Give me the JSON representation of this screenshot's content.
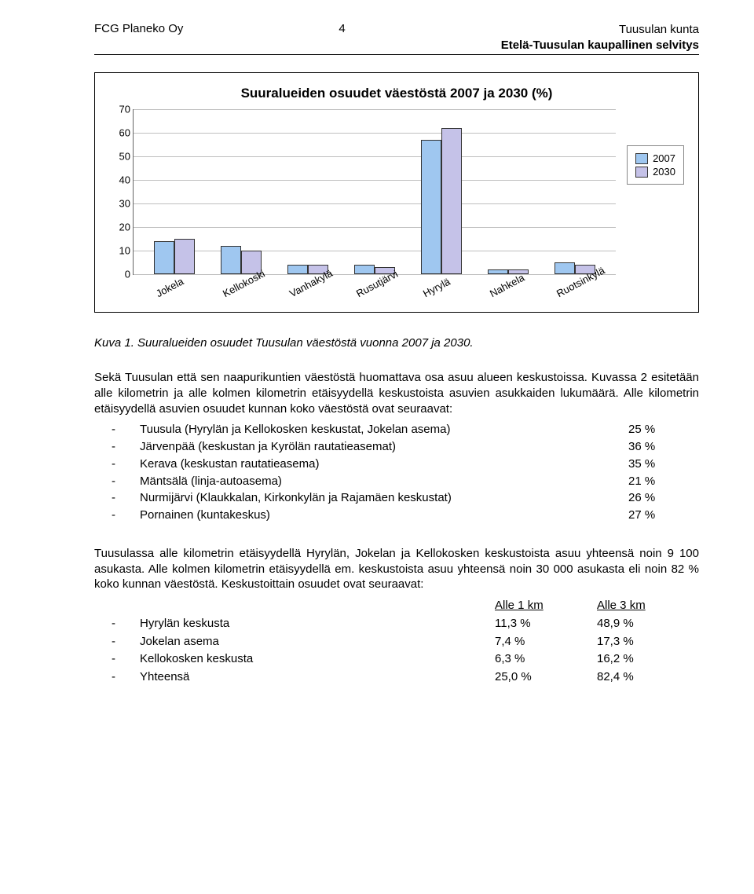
{
  "header": {
    "left": "FCG Planeko Oy",
    "page_number": "4",
    "right_line1": "Tuusulan kunta",
    "right_line2": "Etelä-Tuusulan kaupallinen selvitys"
  },
  "chart": {
    "title": "Suuralueiden osuudet väestöstä 2007 ja 2030 (%)",
    "ymax": 70,
    "ytick_step": 10,
    "categories": [
      "Jokela",
      "Kellokoski",
      "Vanhakylä",
      "Rusutjärvi",
      "Hyrylä",
      "Nahkela",
      "Ruotsinkylä"
    ],
    "series": [
      {
        "name": "2007",
        "color": "#9fc7f0",
        "values": [
          14,
          12,
          4,
          4,
          57,
          2,
          5
        ]
      },
      {
        "name": "2030",
        "color": "#c5c2e8",
        "values": [
          15,
          10,
          4,
          3,
          62,
          2,
          4
        ]
      }
    ],
    "grid_color": "#bfbfbf",
    "axis_color": "#666666",
    "label_fontsize": 13
  },
  "caption": "Kuva 1. Suuralueiden osuudet Tuusulan väestöstä vuonna 2007 ja 2030.",
  "para1": "Sekä Tuusulan että sen naapurikuntien väestöstä huomattava osa asuu alueen keskustoissa. Kuvassa 2 esitetään alle kilometrin ja alle kolmen kilometrin etäisyydellä keskustoista asuvien asukkaiden lukumäärä. Alle kilometrin etäisyydellä asuvien osuudet kunnan koko väestöstä ovat seuraavat:",
  "bullets": [
    {
      "label": "Tuusula (Hyrylän ja Kellokosken keskustat, Jokelan asema)",
      "pct": "25 %"
    },
    {
      "label": "Järvenpää (keskustan ja Kyrölän rautatieasemat)",
      "pct": "36 %"
    },
    {
      "label": "Kerava (keskustan rautatieasema)",
      "pct": "35 %"
    },
    {
      "label": "Mäntsälä (linja-autoasema)",
      "pct": "21 %"
    },
    {
      "label": "Nurmijärvi (Klaukkalan, Kirkonkylän ja Rajamäen keskustat)",
      "pct": "26 %"
    },
    {
      "label": "Pornainen (kuntakeskus)",
      "pct": "27 %"
    }
  ],
  "para2": "Tuusulassa alle kilometrin etäisyydellä Hyrylän, Jokelan ja Kellokosken keskustoista asuu yhteensä noin 9 100 asukasta. Alle kolmen kilometrin etäisyydellä em. keskustoista asuu yhteensä noin 30 000 asukasta eli noin 82 % koko kunnan väestöstä. Keskustoittain osuudet ovat seuraavat:",
  "table": {
    "col1_header": "Alle 1 km",
    "col2_header": "Alle 3 km",
    "rows": [
      {
        "label": "Hyrylän keskusta",
        "c1": "11,3 %",
        "c2": "48,9 %"
      },
      {
        "label": "Jokelan asema",
        "c1": "7,4 %",
        "c2": "17,3 %"
      },
      {
        "label": "Kellokosken keskusta",
        "c1": "6,3 %",
        "c2": "16,2 %"
      },
      {
        "label": "Yhteensä",
        "c1": "25,0 %",
        "c2": "82,4 %"
      }
    ]
  }
}
